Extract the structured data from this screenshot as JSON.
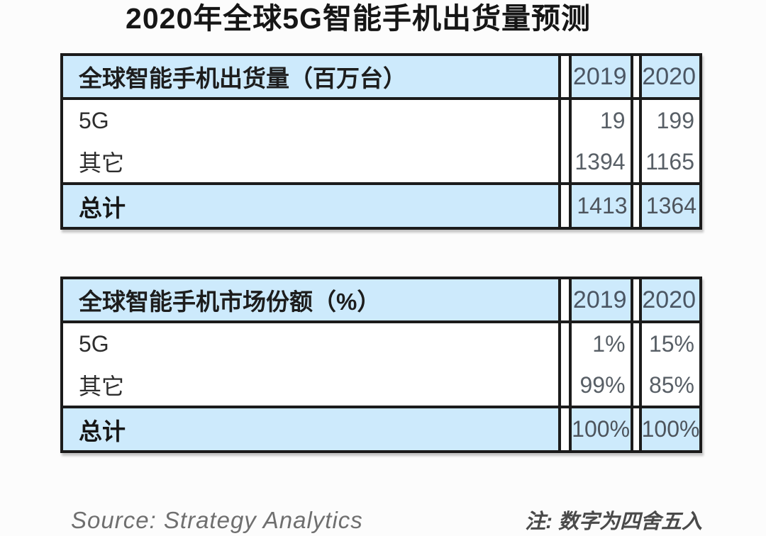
{
  "title": "2020年全球5G智能手机出货量预测",
  "colors": {
    "header_bg": "#cdeafc",
    "border": "#1b1b1b",
    "number_text": "#585f66",
    "page_bg": "#fcfcfc"
  },
  "tables": [
    {
      "header": {
        "label": "全球智能手机出货量（百万台）",
        "col1": "2019",
        "col2": "2020"
      },
      "rows": [
        {
          "label": "5G",
          "v1": "19",
          "v2": "199"
        },
        {
          "label": "其它",
          "v1": "1394",
          "v2": "1165"
        }
      ],
      "total": {
        "label": "总计",
        "v1": "1413",
        "v2": "1364"
      }
    },
    {
      "header": {
        "label": "全球智能手机市场份额（%）",
        "col1": "2019",
        "col2": "2020"
      },
      "rows": [
        {
          "label": "5G",
          "v1": "1%",
          "v2": "15%"
        },
        {
          "label": "其它",
          "v1": "99%",
          "v2": "85%"
        }
      ],
      "total": {
        "label": "总计",
        "v1": "100%",
        "v2": "100%"
      }
    }
  ],
  "footer": {
    "source": "Source: Strategy Analytics",
    "note": "注: 数字为四舍五入"
  },
  "chart_data": [
    {
      "type": "table",
      "title": "全球智能手机出货量（百万台）",
      "columns": [
        "",
        "2019",
        "2020"
      ],
      "rows": [
        [
          "5G",
          19,
          199
        ],
        [
          "其它",
          1394,
          1165
        ],
        [
          "总计",
          1413,
          1364
        ]
      ]
    },
    {
      "type": "table",
      "title": "全球智能手机市场份额（%）",
      "columns": [
        "",
        "2019",
        "2020"
      ],
      "rows": [
        [
          "5G",
          "1%",
          "15%"
        ],
        [
          "其它",
          "99%",
          "85%"
        ],
        [
          "总计",
          "100%",
          "100%"
        ]
      ]
    }
  ]
}
